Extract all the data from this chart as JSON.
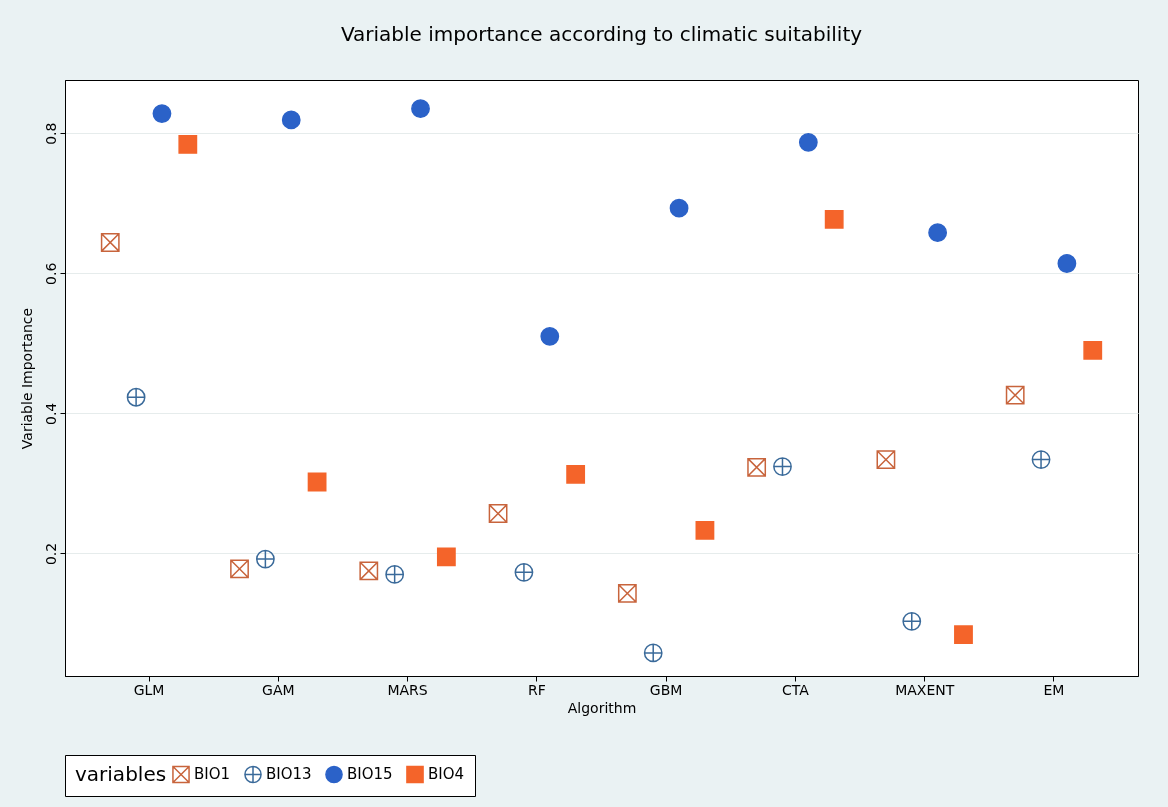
{
  "chart_data": {
    "type": "scatter",
    "title": "Variable importance according to climatic suitability",
    "xlabel": "Algorithm",
    "ylabel": "Variable Importance",
    "legend_title": "variables",
    "categories": [
      "GLM",
      "GAM",
      "MARS",
      "RF",
      "GBM",
      "CTA",
      "MAXENT",
      "EM"
    ],
    "series": [
      {
        "name": "BIO1",
        "color": "#c8643c",
        "marker": "cross",
        "values": [
          0.644,
          0.178,
          0.175,
          0.257,
          0.143,
          0.323,
          0.334,
          0.426
        ]
      },
      {
        "name": "BIO13",
        "color": "#3a6a9a",
        "marker": "cross",
        "values": [
          0.423,
          0.192,
          0.17,
          0.173,
          0.058,
          0.324,
          0.103,
          0.334
        ]
      },
      {
        "name": "BIO15",
        "color": "#2b62c8",
        "marker": "circle",
        "values": [
          0.828,
          0.819,
          0.835,
          0.51,
          0.693,
          0.787,
          0.658,
          0.614
        ]
      },
      {
        "name": "BIO4",
        "color": "#f4642a",
        "marker": "square",
        "values": [
          0.784,
          0.302,
          0.195,
          0.313,
          0.233,
          0.677,
          0.084,
          0.49
        ]
      }
    ],
    "ylim": [
      0.025,
      0.876
    ],
    "yticks": [
      0.2,
      0.4,
      0.6,
      0.8
    ],
    "grid": "y",
    "legend": "bottom"
  }
}
